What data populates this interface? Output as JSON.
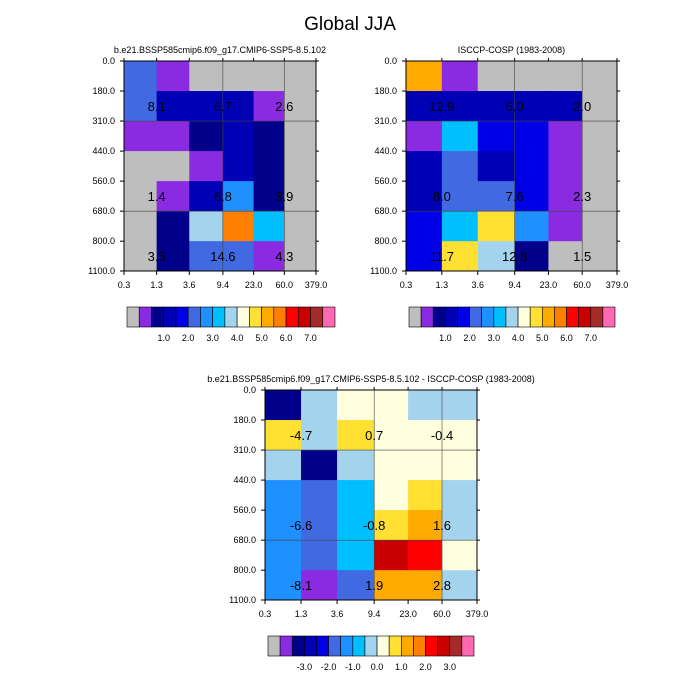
{
  "figure": {
    "title": "Global JJA"
  },
  "palette": {
    "seq": [
      "#bebebe",
      "#8a2be2",
      "#00008b",
      "#0000b4",
      "#0000e6",
      "#4169e1",
      "#1e90ff",
      "#00bfff",
      "#a4d3ee",
      "#ffffe0",
      "#ffe033",
      "#ffaa00",
      "#ff7f00",
      "#ff0000",
      "#c80000",
      "#a52a2a",
      "#ff69b4"
    ],
    "diff": [
      "#bebebe",
      "#8a2be2",
      "#00008b",
      "#0000b4",
      "#0000e6",
      "#4169e1",
      "#1e90ff",
      "#00bfff",
      "#a4d3ee",
      "#ffffe0",
      "#ffe033",
      "#ffaa00",
      "#ff7f00",
      "#ff0000",
      "#c80000",
      "#a52a2a",
      "#ff69b4"
    ]
  },
  "chart_data": [
    {
      "type": "heatmap",
      "title": "b.e21.BSSP585cmip6.f09_g17.CMIP6-SSP5-8.5.102",
      "x_ticks": [
        "0.3",
        "1.3",
        "3.6",
        "9.4",
        "23.0",
        "60.0",
        "379.0"
      ],
      "y_ticks": [
        "0.0",
        "180.0",
        "310.0",
        "440.0",
        "560.0",
        "680.0",
        "800.0",
        "1100.0"
      ],
      "cells": [
        [
          5,
          1,
          0,
          0,
          0,
          0
        ],
        [
          5,
          3,
          3,
          3,
          1,
          0
        ],
        [
          1,
          1,
          2,
          3,
          2,
          0
        ],
        [
          0,
          0,
          1,
          3,
          2,
          0
        ],
        [
          0,
          1,
          3,
          6,
          2,
          0
        ],
        [
          0,
          2,
          8,
          12,
          7,
          0
        ],
        [
          0,
          2,
          5,
          5,
          1,
          0
        ]
      ],
      "labels": [
        {
          "text": "8.1",
          "col": 1,
          "row": 1
        },
        {
          "text": "6.7",
          "col": 3,
          "row": 1
        },
        {
          "text": "2.6",
          "col": 5,
          "row": 1
        },
        {
          "text": "1.4",
          "col": 1,
          "row": 4
        },
        {
          "text": "6.8",
          "col": 3,
          "row": 4
        },
        {
          "text": "3.9",
          "col": 5,
          "row": 4
        },
        {
          "text": "3.5",
          "col": 1,
          "row": 6
        },
        {
          "text": "14.6",
          "col": 3,
          "row": 6
        },
        {
          "text": "4.3",
          "col": 5,
          "row": 6
        }
      ],
      "colorbar_labels": [
        "1.0",
        "2.0",
        "3.0",
        "4.0",
        "5.0",
        "6.0",
        "7.0"
      ]
    },
    {
      "type": "heatmap",
      "title": "ISCCP-COSP (1983-2008)",
      "x_ticks": [
        "0.3",
        "1.3",
        "3.6",
        "9.4",
        "23.0",
        "60.0",
        "379.0"
      ],
      "y_ticks": [
        "0.0",
        "180.0",
        "310.0",
        "440.0",
        "560.0",
        "680.0",
        "800.0",
        "1100.0"
      ],
      "cells": [
        [
          11,
          1,
          0,
          0,
          0,
          0
        ],
        [
          3,
          3,
          3,
          3,
          3,
          0
        ],
        [
          1,
          7,
          4,
          4,
          1,
          0
        ],
        [
          3,
          5,
          3,
          4,
          1,
          0
        ],
        [
          3,
          5,
          5,
          4,
          1,
          0
        ],
        [
          4,
          7,
          10,
          6,
          1,
          0
        ],
        [
          4,
          10,
          8,
          2,
          0,
          0
        ]
      ],
      "labels": [
        {
          "text": "12.9",
          "col": 1,
          "row": 1
        },
        {
          "text": "6.0",
          "col": 3,
          "row": 1
        },
        {
          "text": "2.0",
          "col": 5,
          "row": 1
        },
        {
          "text": "8.0",
          "col": 1,
          "row": 4
        },
        {
          "text": "7.6",
          "col": 3,
          "row": 4
        },
        {
          "text": "2.3",
          "col": 5,
          "row": 4
        },
        {
          "text": "11.7",
          "col": 1,
          "row": 6
        },
        {
          "text": "12.8",
          "col": 3,
          "row": 6
        },
        {
          "text": "1.5",
          "col": 5,
          "row": 6
        }
      ],
      "colorbar_labels": [
        "1.0",
        "2.0",
        "3.0",
        "4.0",
        "5.0",
        "6.0",
        "7.0"
      ]
    },
    {
      "type": "heatmap",
      "title": "b.e21.BSSP585cmip6.f09_g17.CMIP6-SSP5-8.5.102 - ISCCP-COSP (1983-2008)",
      "x_ticks": [
        "0.3",
        "1.3",
        "3.6",
        "9.4",
        "23.0",
        "60.0",
        "379.0"
      ],
      "y_ticks": [
        "0.0",
        "180.0",
        "310.0",
        "440.0",
        "560.0",
        "680.0",
        "800.0",
        "1100.0"
      ],
      "cells": [
        [
          2,
          8,
          9,
          9,
          8,
          8
        ],
        [
          10,
          8,
          10,
          9,
          9,
          9
        ],
        [
          8,
          2,
          8,
          9,
          9,
          9
        ],
        [
          6,
          5,
          7,
          9,
          10,
          8
        ],
        [
          6,
          5,
          7,
          10,
          11,
          8
        ],
        [
          6,
          5,
          7,
          14,
          13,
          9
        ],
        [
          6,
          1,
          5,
          11,
          11,
          8
        ]
      ],
      "labels": [
        {
          "text": "-4.7",
          "col": 1,
          "row": 1
        },
        {
          "text": "0.7",
          "col": 3,
          "row": 1
        },
        {
          "text": "-0.4",
          "col": 5,
          "row": 1
        },
        {
          "text": "-6.6",
          "col": 1,
          "row": 4
        },
        {
          "text": "-0.8",
          "col": 3,
          "row": 4
        },
        {
          "text": "1.6",
          "col": 5,
          "row": 4
        },
        {
          "text": "-8.1",
          "col": 1,
          "row": 6
        },
        {
          "text": "1.9",
          "col": 3,
          "row": 6
        },
        {
          "text": "2.8",
          "col": 5,
          "row": 6
        }
      ],
      "colorbar_labels": [
        "-3.0",
        "-2.0",
        "-1.0",
        "0.0",
        "1.0",
        "2.0",
        "3.0"
      ]
    }
  ]
}
